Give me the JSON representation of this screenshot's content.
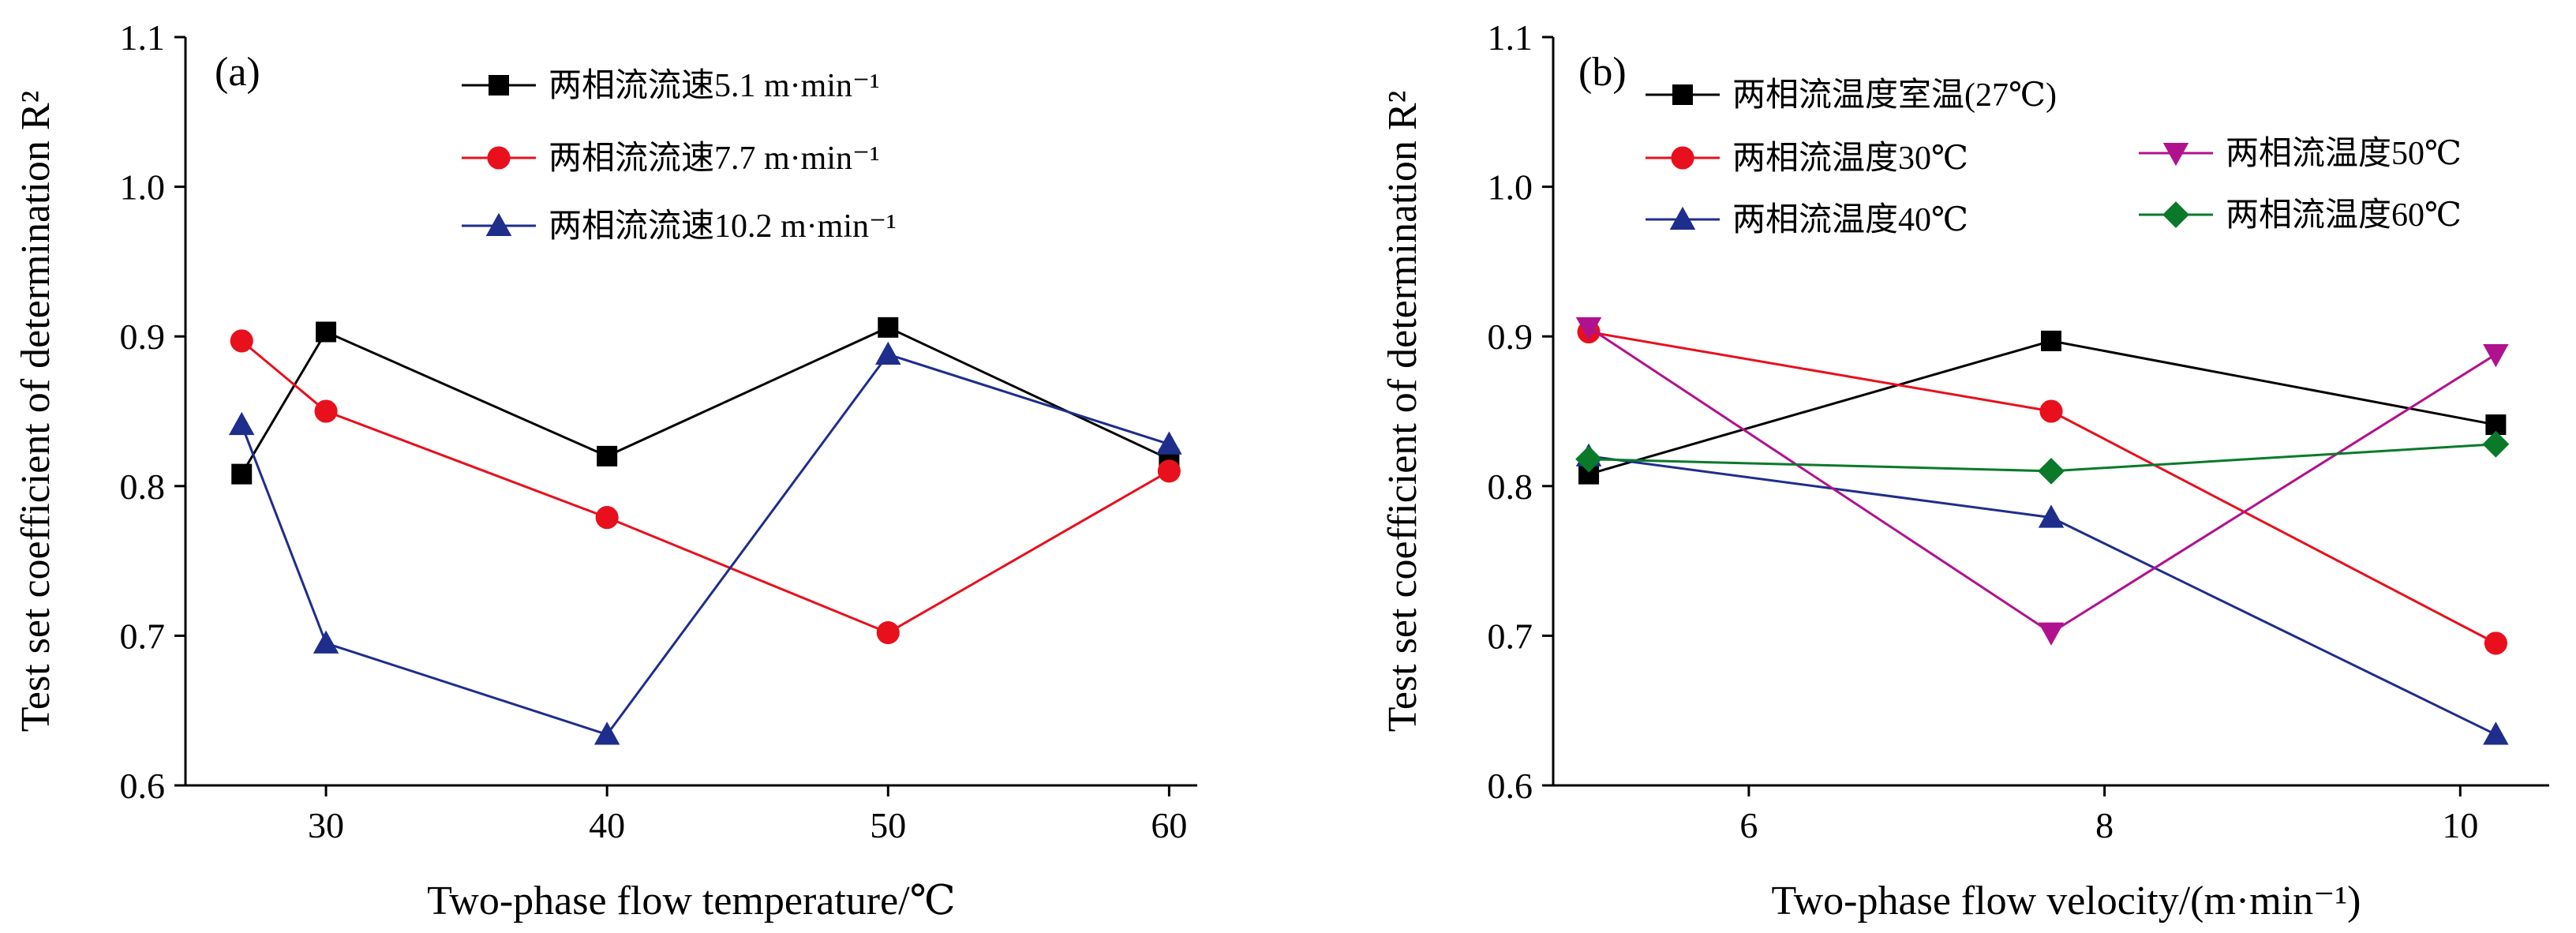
{
  "chart_data": [
    {
      "type": "line",
      "panel_label": "(a)",
      "xlabel": "Two-phase flow temperature/℃",
      "ylabel": "Test set coefficient of determination R²",
      "xlim": [
        25,
        61
      ],
      "ylim": [
        0.6,
        1.1
      ],
      "xticks": [
        30,
        40,
        50,
        60
      ],
      "yticks": [
        0.6,
        0.7,
        0.8,
        0.9,
        1.0,
        1.1
      ],
      "ytick_labels": [
        "0.6",
        "0.7",
        "0.8",
        "0.9",
        "1.0",
        "1.1"
      ],
      "legend_position": "top-center",
      "series": [
        {
          "name": "两相流流速5.1 m·min⁻¹",
          "color": "#000000",
          "marker": "square",
          "x": [
            27,
            30,
            40,
            50,
            60
          ],
          "y": [
            0.808,
            0.903,
            0.82,
            0.906,
            0.818
          ]
        },
        {
          "name": "两相流流速7.7 m·min⁻¹",
          "color": "#e8101c",
          "marker": "circle",
          "x": [
            27,
            30,
            40,
            50,
            60
          ],
          "y": [
            0.897,
            0.85,
            0.779,
            0.702,
            0.81
          ]
        },
        {
          "name": "两相流流速10.2 m·min⁻¹",
          "color": "#1f2d8c",
          "marker": "triangle-up",
          "x": [
            27,
            30,
            40,
            50,
            60
          ],
          "y": [
            0.841,
            0.695,
            0.634,
            0.888,
            0.828
          ]
        }
      ]
    },
    {
      "type": "line",
      "panel_label": "(b)",
      "xlabel": "Two-phase flow velocity/(m·min⁻¹)",
      "ylabel": "Test set coefficient of determination R²",
      "xlim": [
        4.9,
        10.5
      ],
      "ylim": [
        0.6,
        1.1
      ],
      "xticks": [
        6,
        8,
        10
      ],
      "yticks": [
        0.6,
        0.7,
        0.8,
        0.9,
        1.0,
        1.1
      ],
      "ytick_labels": [
        "0.6",
        "0.7",
        "0.8",
        "0.9",
        "1.0",
        "1.1"
      ],
      "legend_position": "top",
      "series": [
        {
          "name": "两相流温度室温(27℃)",
          "color": "#000000",
          "marker": "square",
          "x": [
            5.1,
            7.7,
            10.2
          ],
          "y": [
            0.808,
            0.897,
            0.841
          ]
        },
        {
          "name": "两相流温度30℃",
          "color": "#e8101c",
          "marker": "circle",
          "x": [
            5.1,
            7.7,
            10.2
          ],
          "y": [
            0.903,
            0.85,
            0.695
          ]
        },
        {
          "name": "两相流温度40℃",
          "color": "#1f2d8c",
          "marker": "triangle-up",
          "x": [
            5.1,
            7.7,
            10.2
          ],
          "y": [
            0.82,
            0.779,
            0.634
          ]
        },
        {
          "name": "两相流温度50℃",
          "color": "#b0128f",
          "marker": "triangle-down",
          "x": [
            5.1,
            7.7,
            10.2
          ],
          "y": [
            0.906,
            0.702,
            0.888
          ]
        },
        {
          "name": "两相流温度60℃",
          "color": "#0a7a2a",
          "marker": "diamond",
          "x": [
            5.1,
            7.7,
            10.2
          ],
          "y": [
            0.818,
            0.81,
            0.828
          ]
        }
      ]
    }
  ]
}
